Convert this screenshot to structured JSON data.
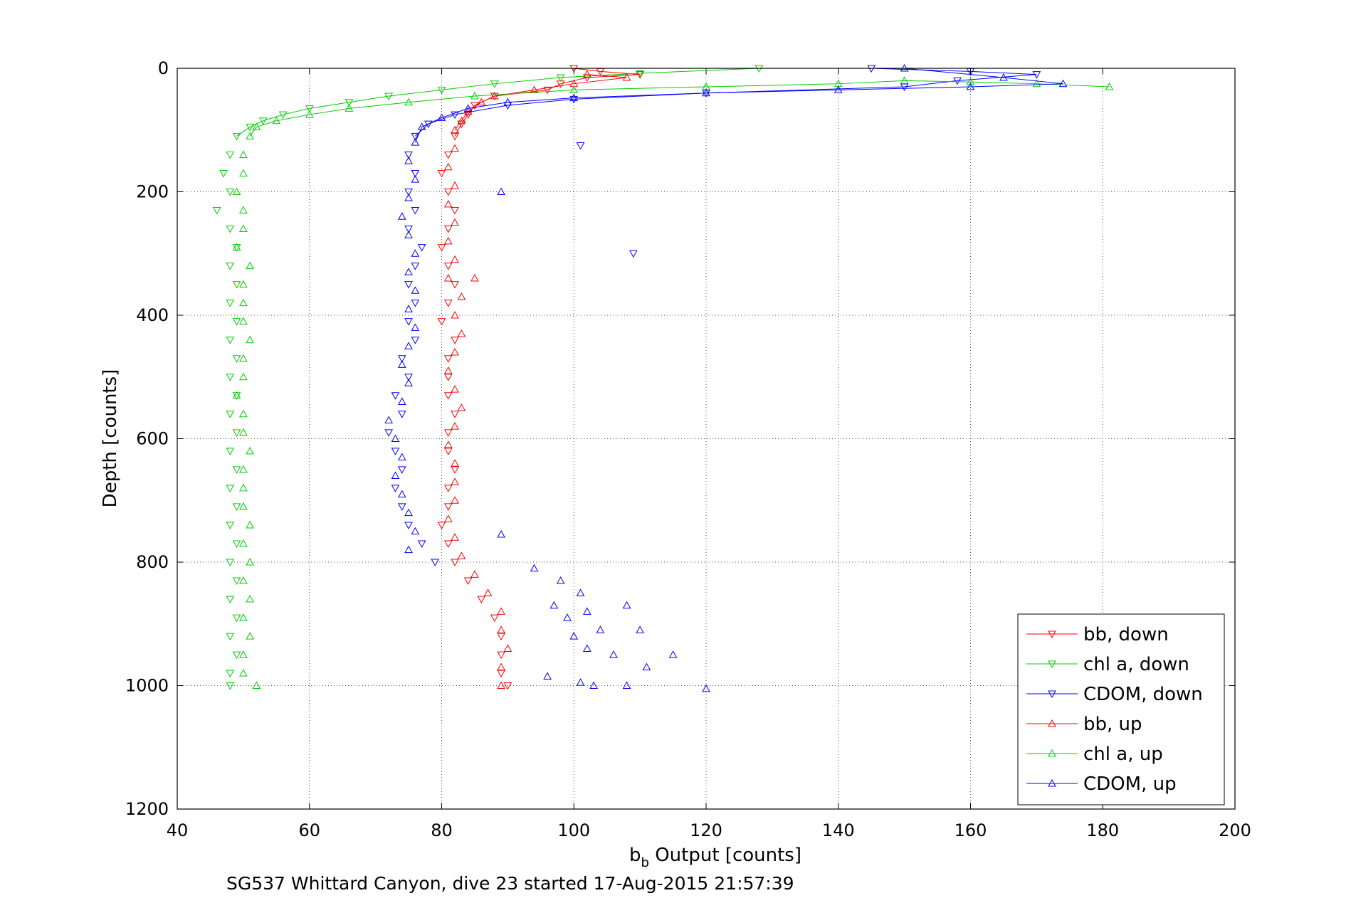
{
  "chart_data": {
    "type": "scatter",
    "xlabel_base": "b",
    "xlabel_sub": "b",
    "xlabel_rest": " Output [counts]",
    "ylabel": "Depth [counts]",
    "caption": "SG537 Whittard Canyon, dive 23 started 17-Aug-2015 21:57:39",
    "xlim": [
      40,
      200
    ],
    "ylim": [
      0,
      1200
    ],
    "y_reversed": true,
    "grid": true,
    "legend_position": "bottom-right",
    "xticks": [
      "40",
      "60",
      "80",
      "100",
      "120",
      "140",
      "160",
      "180",
      "200"
    ],
    "yticks": [
      "0",
      "200",
      "400",
      "600",
      "800",
      "1000",
      "1200"
    ],
    "series": [
      {
        "name": "bb, down",
        "color": "#ff0000",
        "marker": "triangle-down",
        "points": [
          [
            100,
            0
          ],
          [
            104,
            5
          ],
          [
            110,
            10
          ],
          [
            102,
            15
          ],
          [
            98,
            25
          ],
          [
            96,
            35
          ],
          [
            88,
            45
          ],
          [
            85,
            60
          ],
          [
            84,
            75
          ],
          [
            83,
            90
          ],
          [
            82,
            110
          ],
          [
            81,
            140
          ],
          [
            80,
            170
          ],
          [
            81,
            200
          ],
          [
            82,
            230
          ],
          [
            81,
            260
          ],
          [
            80,
            290
          ],
          [
            81,
            320
          ],
          [
            82,
            350
          ],
          [
            81,
            380
          ],
          [
            80,
            410
          ],
          [
            82,
            440
          ],
          [
            81,
            470
          ],
          [
            81,
            500
          ],
          [
            81,
            530
          ],
          [
            82,
            560
          ],
          [
            81,
            590
          ],
          [
            81,
            620
          ],
          [
            82,
            650
          ],
          [
            81,
            680
          ],
          [
            81,
            710
          ],
          [
            80,
            740
          ],
          [
            81,
            770
          ],
          [
            82,
            800
          ],
          [
            84,
            830
          ],
          [
            86,
            860
          ],
          [
            88,
            890
          ],
          [
            89,
            920
          ],
          [
            89,
            950
          ],
          [
            89,
            980
          ],
          [
            90,
            1000
          ]
        ]
      },
      {
        "name": "chl a, down",
        "color": "#00cc00",
        "marker": "triangle-down",
        "points": [
          [
            128,
            0
          ],
          [
            110,
            8
          ],
          [
            98,
            15
          ],
          [
            88,
            25
          ],
          [
            80,
            35
          ],
          [
            72,
            45
          ],
          [
            66,
            55
          ],
          [
            60,
            65
          ],
          [
            56,
            75
          ],
          [
            53,
            85
          ],
          [
            51,
            95
          ],
          [
            49,
            110
          ],
          [
            48,
            140
          ],
          [
            47,
            170
          ],
          [
            48,
            200
          ],
          [
            46,
            230
          ],
          [
            48,
            260
          ],
          [
            49,
            290
          ],
          [
            48,
            320
          ],
          [
            49,
            350
          ],
          [
            48,
            380
          ],
          [
            49,
            410
          ],
          [
            48,
            440
          ],
          [
            49,
            470
          ],
          [
            48,
            500
          ],
          [
            49,
            530
          ],
          [
            48,
            560
          ],
          [
            49,
            590
          ],
          [
            48,
            620
          ],
          [
            49,
            650
          ],
          [
            48,
            680
          ],
          [
            49,
            710
          ],
          [
            48,
            740
          ],
          [
            49,
            770
          ],
          [
            48,
            800
          ],
          [
            49,
            830
          ],
          [
            48,
            860
          ],
          [
            49,
            890
          ],
          [
            48,
            920
          ],
          [
            49,
            950
          ],
          [
            48,
            980
          ],
          [
            48,
            1000
          ]
        ]
      },
      {
        "name": "CDOM, down",
        "color": "#0000ff",
        "marker": "triangle-down",
        "points": [
          [
            145,
            0
          ],
          [
            160,
            5
          ],
          [
            170,
            10
          ],
          [
            158,
            20
          ],
          [
            150,
            30
          ],
          [
            120,
            40
          ],
          [
            100,
            50
          ],
          [
            90,
            60
          ],
          [
            82,
            75
          ],
          [
            78,
            90
          ],
          [
            76,
            110
          ],
          [
            75,
            140
          ],
          [
            76,
            170
          ],
          [
            75,
            200
          ],
          [
            76,
            230
          ],
          [
            75,
            260
          ],
          [
            77,
            290
          ],
          [
            76,
            320
          ],
          [
            75,
            350
          ],
          [
            76,
            380
          ],
          [
            75,
            410
          ],
          [
            76,
            440
          ],
          [
            74,
            470
          ],
          [
            75,
            500
          ],
          [
            73,
            530
          ],
          [
            74,
            560
          ],
          [
            72,
            590
          ],
          [
            73,
            620
          ],
          [
            74,
            650
          ],
          [
            73,
            680
          ],
          [
            74,
            710
          ],
          [
            75,
            740
          ],
          [
            77,
            770
          ],
          [
            79,
            800
          ],
          [
            101,
            125
          ],
          [
            109,
            300
          ]
        ]
      },
      {
        "name": "bb, up",
        "color": "#ff0000",
        "marker": "triangle-up",
        "points": [
          [
            102,
            10
          ],
          [
            108,
            15
          ],
          [
            100,
            25
          ],
          [
            94,
            35
          ],
          [
            88,
            45
          ],
          [
            86,
            55
          ],
          [
            84,
            70
          ],
          [
            83,
            85
          ],
          [
            82,
            100
          ],
          [
            82,
            130
          ],
          [
            81,
            160
          ],
          [
            82,
            190
          ],
          [
            81,
            220
          ],
          [
            82,
            250
          ],
          [
            81,
            280
          ],
          [
            82,
            310
          ],
          [
            81,
            340
          ],
          [
            85,
            340
          ],
          [
            83,
            370
          ],
          [
            82,
            400
          ],
          [
            83,
            430
          ],
          [
            82,
            460
          ],
          [
            81,
            490
          ],
          [
            82,
            520
          ],
          [
            83,
            550
          ],
          [
            82,
            580
          ],
          [
            81,
            610
          ],
          [
            82,
            640
          ],
          [
            82,
            670
          ],
          [
            82,
            700
          ],
          [
            81,
            730
          ],
          [
            82,
            760
          ],
          [
            83,
            790
          ],
          [
            85,
            820
          ],
          [
            87,
            850
          ],
          [
            89,
            880
          ],
          [
            89,
            910
          ],
          [
            90,
            940
          ],
          [
            89,
            970
          ],
          [
            89,
            1000
          ]
        ]
      },
      {
        "name": "chl a, up",
        "color": "#00cc00",
        "marker": "triangle-up",
        "points": [
          [
            181,
            30
          ],
          [
            170,
            25
          ],
          [
            160,
            22
          ],
          [
            150,
            20
          ],
          [
            140,
            25
          ],
          [
            120,
            30
          ],
          [
            100,
            35
          ],
          [
            85,
            45
          ],
          [
            75,
            55
          ],
          [
            66,
            65
          ],
          [
            60,
            75
          ],
          [
            55,
            85
          ],
          [
            52,
            95
          ],
          [
            51,
            110
          ],
          [
            50,
            140
          ],
          [
            50,
            170
          ],
          [
            49,
            200
          ],
          [
            50,
            230
          ],
          [
            50,
            260
          ],
          [
            49,
            290
          ],
          [
            51,
            320
          ],
          [
            50,
            350
          ],
          [
            50,
            380
          ],
          [
            50,
            410
          ],
          [
            51,
            440
          ],
          [
            50,
            470
          ],
          [
            50,
            500
          ],
          [
            49,
            530
          ],
          [
            50,
            560
          ],
          [
            50,
            590
          ],
          [
            51,
            620
          ],
          [
            50,
            650
          ],
          [
            50,
            680
          ],
          [
            50,
            710
          ],
          [
            51,
            740
          ],
          [
            50,
            770
          ],
          [
            51,
            800
          ],
          [
            50,
            830
          ],
          [
            51,
            860
          ],
          [
            50,
            890
          ],
          [
            51,
            920
          ],
          [
            50,
            950
          ],
          [
            50,
            980
          ],
          [
            52,
            1000
          ]
        ]
      },
      {
        "name": "CDOM, up",
        "color": "#0000ff",
        "marker": "triangle-up",
        "points": [
          [
            150,
            0
          ],
          [
            165,
            15
          ],
          [
            174,
            25
          ],
          [
            160,
            30
          ],
          [
            140,
            35
          ],
          [
            120,
            40
          ],
          [
            100,
            48
          ],
          [
            90,
            55
          ],
          [
            84,
            65
          ],
          [
            80,
            80
          ],
          [
            77,
            95
          ],
          [
            76,
            120
          ],
          [
            75,
            150
          ],
          [
            76,
            180
          ],
          [
            75,
            210
          ],
          [
            74,
            240
          ],
          [
            75,
            270
          ],
          [
            76,
            300
          ],
          [
            75,
            330
          ],
          [
            76,
            360
          ],
          [
            75,
            390
          ],
          [
            76,
            420
          ],
          [
            75,
            450
          ],
          [
            74,
            480
          ],
          [
            75,
            510
          ],
          [
            74,
            540
          ],
          [
            72,
            570
          ],
          [
            73,
            600
          ],
          [
            74,
            630
          ],
          [
            73,
            660
          ],
          [
            74,
            690
          ],
          [
            75,
            720
          ],
          [
            76,
            750
          ],
          [
            75,
            780
          ],
          [
            89,
            200
          ],
          [
            89,
            755
          ],
          [
            94,
            810
          ],
          [
            98,
            830
          ],
          [
            101,
            850
          ],
          [
            97,
            870
          ],
          [
            99,
            890
          ],
          [
            102,
            880
          ],
          [
            104,
            910
          ],
          [
            108,
            870
          ],
          [
            100,
            920
          ],
          [
            102,
            940
          ],
          [
            110,
            910
          ],
          [
            106,
            950
          ],
          [
            115,
            950
          ],
          [
            111,
            970
          ],
          [
            96,
            985
          ],
          [
            101,
            995
          ],
          [
            108,
            1000
          ],
          [
            103,
            1000
          ],
          [
            120,
            1005
          ]
        ]
      }
    ]
  }
}
